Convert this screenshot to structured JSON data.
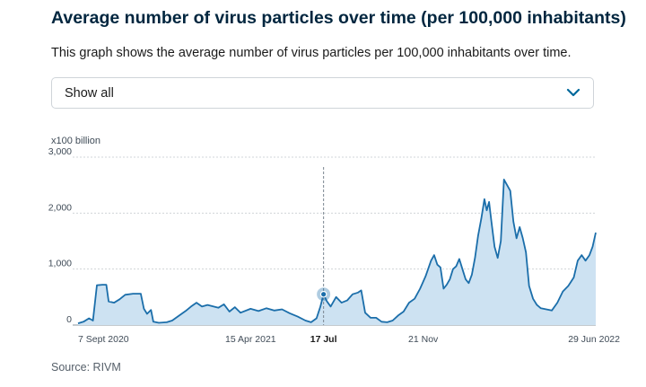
{
  "header": {
    "title": "Average number of virus particles over time (per 100,000 inhabitants)",
    "subtitle": "This graph shows the average number of virus particles per 100,000 inhabitants over time."
  },
  "filter": {
    "selected": "Show all"
  },
  "footer": {
    "source": "Source: RIVM"
  },
  "colors": {
    "line": "#1b6eaa",
    "area": "#cde2f2",
    "grid": "#d0d4d8",
    "marker": "#1b6eaa",
    "chevron": "#01689b"
  },
  "chart_data": {
    "type": "area",
    "unit_label": "x100 billion",
    "ylim": [
      0,
      3000
    ],
    "yticks": [
      0,
      1000,
      2000,
      3000
    ],
    "ytick_labels": [
      "0",
      "1,000",
      "2,000",
      "3,000"
    ],
    "xlim": [
      "2020-09-07",
      "2022-06-29"
    ],
    "xticks": [
      {
        "date": "2020-09-07",
        "label": "7 Sept 2020",
        "highlight": false
      },
      {
        "date": "2021-04-15",
        "label": "15 Apr 2021",
        "highlight": false
      },
      {
        "date": "2021-07-17",
        "label": "17 Jul",
        "highlight": true
      },
      {
        "date": "2021-11-21",
        "label": "21 Nov",
        "highlight": false
      },
      {
        "date": "2022-06-29",
        "label": "29 Jun 2022",
        "highlight": false
      }
    ],
    "highlight": {
      "date": "2021-07-17",
      "value": 550
    },
    "grid": true,
    "series": [
      {
        "points": [
          [
            "2020-09-07",
            30
          ],
          [
            "2020-09-14",
            60
          ],
          [
            "2020-09-21",
            120
          ],
          [
            "2020-09-26",
            80
          ],
          [
            "2020-10-01",
            710
          ],
          [
            "2020-10-08",
            720
          ],
          [
            "2020-10-13",
            720
          ],
          [
            "2020-10-16",
            420
          ],
          [
            "2020-10-23",
            400
          ],
          [
            "2020-10-30",
            460
          ],
          [
            "2020-11-06",
            540
          ],
          [
            "2020-11-16",
            560
          ],
          [
            "2020-11-26",
            560
          ],
          [
            "2020-11-30",
            290
          ],
          [
            "2020-12-04",
            200
          ],
          [
            "2020-12-09",
            270
          ],
          [
            "2020-12-12",
            60
          ],
          [
            "2020-12-19",
            40
          ],
          [
            "2020-12-29",
            50
          ],
          [
            "2021-01-05",
            80
          ],
          [
            "2021-01-12",
            150
          ],
          [
            "2021-01-22",
            250
          ],
          [
            "2021-01-29",
            330
          ],
          [
            "2021-02-05",
            400
          ],
          [
            "2021-02-12",
            330
          ],
          [
            "2021-02-19",
            360
          ],
          [
            "2021-03-05",
            310
          ],
          [
            "2021-03-12",
            370
          ],
          [
            "2021-03-19",
            240
          ],
          [
            "2021-03-26",
            320
          ],
          [
            "2021-04-02",
            220
          ],
          [
            "2021-04-15",
            290
          ],
          [
            "2021-04-25",
            250
          ],
          [
            "2021-05-05",
            300
          ],
          [
            "2021-05-15",
            260
          ],
          [
            "2021-05-25",
            280
          ],
          [
            "2021-06-04",
            210
          ],
          [
            "2021-06-14",
            150
          ],
          [
            "2021-06-24",
            80
          ],
          [
            "2021-07-01",
            50
          ],
          [
            "2021-07-08",
            120
          ],
          [
            "2021-07-13",
            330
          ],
          [
            "2021-07-17",
            550
          ],
          [
            "2021-07-21",
            430
          ],
          [
            "2021-07-26",
            330
          ],
          [
            "2021-08-02",
            500
          ],
          [
            "2021-08-09",
            400
          ],
          [
            "2021-08-16",
            440
          ],
          [
            "2021-08-23",
            550
          ],
          [
            "2021-08-30",
            580
          ],
          [
            "2021-09-03",
            620
          ],
          [
            "2021-09-08",
            220
          ],
          [
            "2021-09-15",
            130
          ],
          [
            "2021-09-22",
            130
          ],
          [
            "2021-09-29",
            60
          ],
          [
            "2021-10-06",
            50
          ],
          [
            "2021-10-13",
            80
          ],
          [
            "2021-10-20",
            170
          ],
          [
            "2021-10-27",
            240
          ],
          [
            "2021-11-03",
            400
          ],
          [
            "2021-11-10",
            470
          ],
          [
            "2021-11-17",
            650
          ],
          [
            "2021-11-24",
            870
          ],
          [
            "2021-12-01",
            1150
          ],
          [
            "2021-12-05",
            1250
          ],
          [
            "2021-12-09",
            1080
          ],
          [
            "2021-12-13",
            1030
          ],
          [
            "2021-12-17",
            650
          ],
          [
            "2021-12-21",
            720
          ],
          [
            "2021-12-25",
            820
          ],
          [
            "2021-12-29",
            1000
          ],
          [
            "2022-01-02",
            1050
          ],
          [
            "2022-01-06",
            1180
          ],
          [
            "2022-01-10",
            1000
          ],
          [
            "2022-01-14",
            820
          ],
          [
            "2022-01-18",
            750
          ],
          [
            "2022-01-22",
            900
          ],
          [
            "2022-01-26",
            1200
          ],
          [
            "2022-01-30",
            1600
          ],
          [
            "2022-02-03",
            1900
          ],
          [
            "2022-02-07",
            2250
          ],
          [
            "2022-02-10",
            2050
          ],
          [
            "2022-02-13",
            2200
          ],
          [
            "2022-02-16",
            1850
          ],
          [
            "2022-02-20",
            1400
          ],
          [
            "2022-02-24",
            1200
          ],
          [
            "2022-02-28",
            1500
          ],
          [
            "2022-03-04",
            2600
          ],
          [
            "2022-03-08",
            2500
          ],
          [
            "2022-03-12",
            2400
          ],
          [
            "2022-03-16",
            1850
          ],
          [
            "2022-03-20",
            1550
          ],
          [
            "2022-03-24",
            1750
          ],
          [
            "2022-03-28",
            1550
          ],
          [
            "2022-04-01",
            1300
          ],
          [
            "2022-04-05",
            700
          ],
          [
            "2022-04-10",
            470
          ],
          [
            "2022-04-15",
            360
          ],
          [
            "2022-04-20",
            300
          ],
          [
            "2022-04-27",
            280
          ],
          [
            "2022-05-04",
            260
          ],
          [
            "2022-05-11",
            400
          ],
          [
            "2022-05-18",
            600
          ],
          [
            "2022-05-25",
            700
          ],
          [
            "2022-06-01",
            850
          ],
          [
            "2022-06-06",
            1150
          ],
          [
            "2022-06-11",
            1250
          ],
          [
            "2022-06-16",
            1150
          ],
          [
            "2022-06-21",
            1250
          ],
          [
            "2022-06-25",
            1400
          ],
          [
            "2022-06-29",
            1650
          ]
        ]
      }
    ],
    "source": "RIVM"
  }
}
